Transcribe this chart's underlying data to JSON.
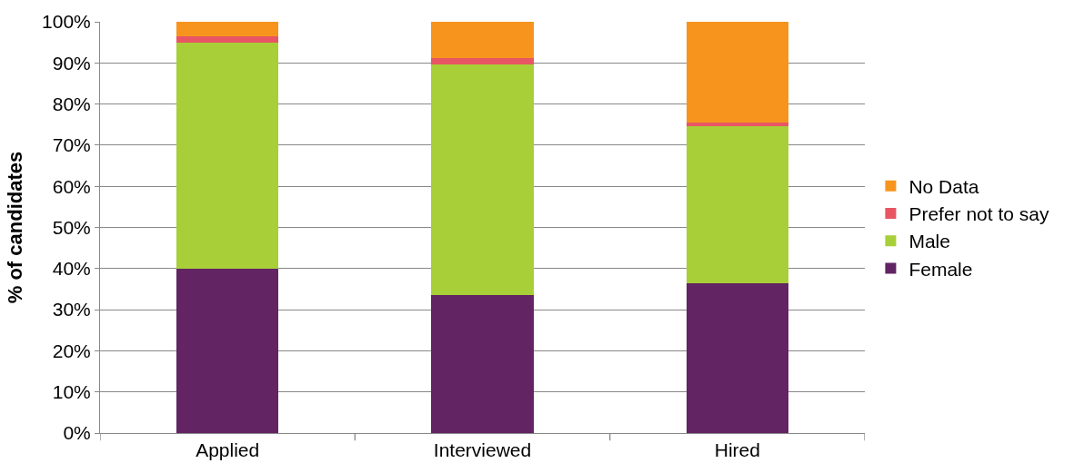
{
  "chart_data": {
    "type": "bar",
    "stacked": true,
    "ylabel": "% of candidates",
    "categories": [
      "Applied",
      "Interviewed",
      "Hired"
    ],
    "series": [
      {
        "name": "Female",
        "color": "#622462",
        "values": [
          40.0,
          33.6,
          36.4
        ]
      },
      {
        "name": "Male",
        "color": "#a8cf38",
        "values": [
          55.0,
          56.1,
          38.2
        ]
      },
      {
        "name": "Prefer not to say",
        "color": "#e85563",
        "values": [
          1.4,
          1.4,
          1.0
        ]
      },
      {
        "name": "No Data",
        "color": "#f7941e",
        "values": [
          3.6,
          8.9,
          24.4
        ]
      }
    ],
    "ylim": [
      0,
      100
    ],
    "yticks": [
      {
        "value": 0,
        "label": "0%"
      },
      {
        "value": 10,
        "label": "10%"
      },
      {
        "value": 20,
        "label": "20%"
      },
      {
        "value": 30,
        "label": "30%"
      },
      {
        "value": 40,
        "label": "40%"
      },
      {
        "value": 50,
        "label": "50%"
      },
      {
        "value": 60,
        "label": "60%"
      },
      {
        "value": 70,
        "label": "70%"
      },
      {
        "value": 80,
        "label": "80%"
      },
      {
        "value": 90,
        "label": "90%"
      },
      {
        "value": 100,
        "label": "100%"
      }
    ],
    "grid": "y",
    "legend": "right"
  }
}
